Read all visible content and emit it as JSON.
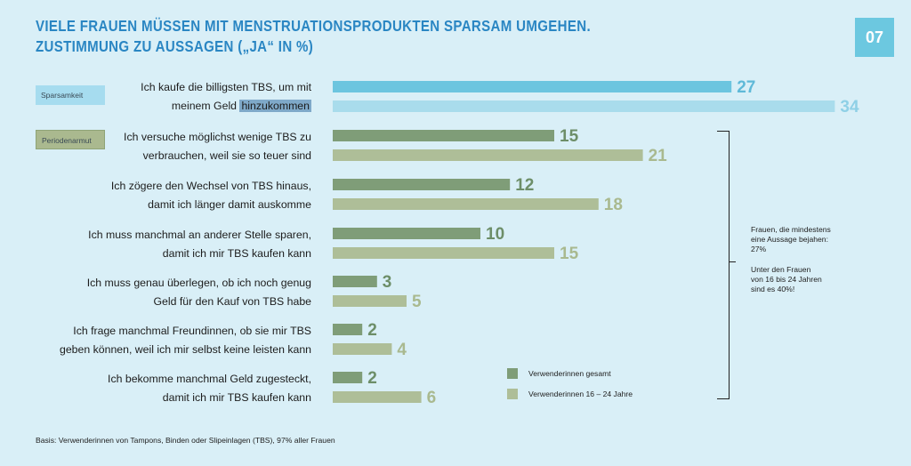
{
  "title": {
    "line1": "VIELE FRAUEN MÜSSEN MIT MENSTRUATIONSPRODUKTEN SPARSAM UMGEHEN.",
    "line2": "ZUSTIMMUNG ZU AUSSAGEN („JA“ IN %)"
  },
  "page_number": "07",
  "categories_labels": {
    "sparsamkeit": "Sparsamkeit",
    "periodenarmut": "Periodenarmut"
  },
  "statements": [
    {
      "line1": "Ich kaufe die billigsten TBS, um mit",
      "line2_pre": "meinem Geld ",
      "line2_hl": "hinzukommen"
    },
    {
      "line1": "Ich versuche möglichst wenige TBS zu",
      "line2": "verbrauchen, weil sie so teuer sind"
    },
    {
      "line1": "Ich zögere den Wechsel von TBS hinaus,",
      "line2": "damit ich länger damit auskomme"
    },
    {
      "line1": "Ich muss manchmal an anderer Stelle sparen,",
      "line2": "damit ich mir TBS kaufen kann"
    },
    {
      "line1": "Ich muss genau überlegen, ob ich noch genug",
      "line2": "Geld für den Kauf von TBS habe"
    },
    {
      "line1": "Ich frage manchmal Freundinnen, ob sie mir TBS",
      "line2": "geben können, weil ich mir selbst keine leisten kann"
    },
    {
      "line1": "Ich bekomme manchmal Geld zugesteckt,",
      "line2": "damit ich mir TBS kaufen kann"
    }
  ],
  "chart_data": {
    "type": "bar",
    "orientation": "horizontal",
    "categories": [
      "Ich kaufe die billigsten TBS, um mit meinem Geld hinzukommen",
      "Ich versuche möglichst wenige TBS zu verbrauchen, weil sie so teuer sind",
      "Ich zögere den Wechsel von TBS hinaus, damit ich länger damit auskomme",
      "Ich muss manchmal an anderer Stelle sparen, damit ich mir TBS kaufen kann",
      "Ich muss genau überlegen, ob ich noch genug Geld für den Kauf von TBS habe",
      "Ich frage manchmal Freundinnen, ob sie mir TBS geben können, weil ich mir selbst keine leisten kann",
      "Ich bekomme manchmal Geld zugesteckt, damit ich mir TBS kaufen kann"
    ],
    "series": [
      {
        "name": "Verwenderinnen gesamt",
        "values": [
          27,
          15,
          12,
          10,
          3,
          2,
          2
        ]
      },
      {
        "name": "Verwenderinnen 16 – 24 Jahre",
        "values": [
          34,
          21,
          18,
          15,
          5,
          4,
          6
        ]
      }
    ],
    "xlim": [
      0,
      34
    ],
    "grid": false,
    "legend_position": "bottom-right",
    "colors": {
      "sparsamkeit_total": "#6cc5df",
      "sparsamkeit_young": "#a9dcec",
      "total": "#7f9d78",
      "young": "#aebe98",
      "value_sparsamkeit_total": "#5fb9d8",
      "value_sparsamkeit_young": "#8fd0e6",
      "value_total": "#6d8e68",
      "value_young": "#a9b98f"
    }
  },
  "legend": {
    "total": "Verwenderinnen gesamt",
    "young": "Verwenderinnen 16 – 24 Jahre"
  },
  "note": {
    "p1_line1": "Frauen, die mindestens",
    "p1_line2": "eine Aussage bejahen:",
    "p1_line3": "27%",
    "p2_line1": "Unter den Frauen",
    "p2_line2": "von 16 bis 24 Jahren",
    "p2_line3": "sind es 40%!"
  },
  "basis": "Basis: Verwenderinnen von Tampons, Binden oder Slipeinlagen (TBS), 97% aller Frauen"
}
